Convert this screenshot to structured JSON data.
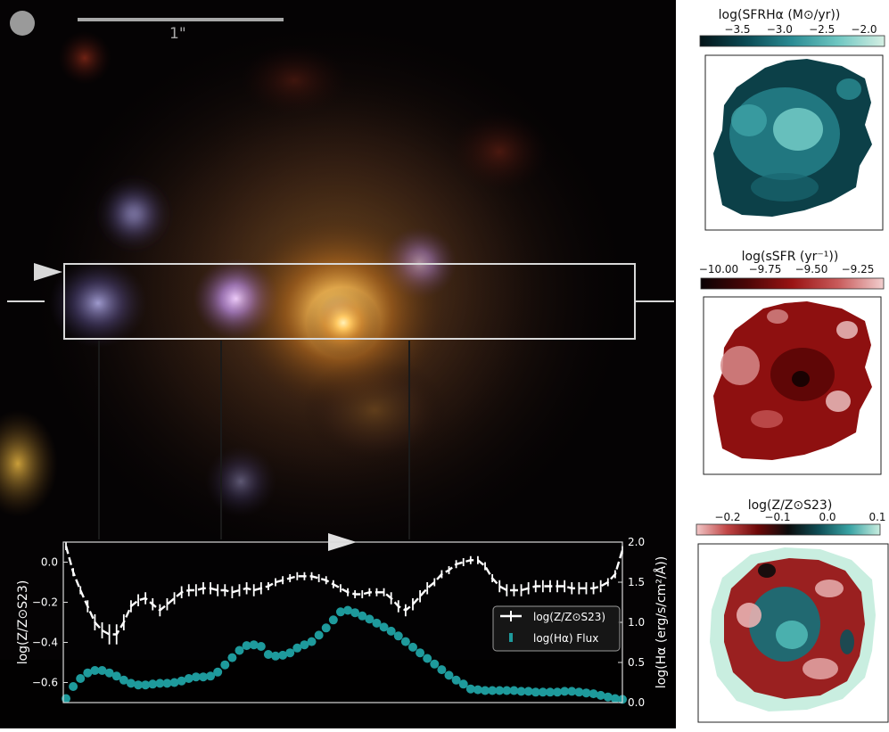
{
  "image": {
    "scale_bar_label": "1\""
  },
  "colors": {
    "metallicity_profile": "#ffffff",
    "halpha_flux": "#1e9a9c"
  },
  "chart_data": [
    {
      "type": "line",
      "title": "",
      "xlabel": "",
      "ylabel": "log(Z/Z⊙S23)",
      "y2label": "log(Hα (erg/s/cm²/Å))",
      "ylim": [
        -0.7,
        0.1
      ],
      "y2lim": [
        0.0,
        2.0
      ],
      "yticks": [
        "0.0",
        "−0.2",
        "−0.4",
        "−0.6"
      ],
      "y2ticks": [
        "2.0",
        "1.5",
        "1.0",
        "0.5",
        "0.0"
      ],
      "legend": {
        "placement": "lower-right",
        "entries": [
          "log(Z/Z⊙S23)",
          "log(Hα) Flux"
        ]
      },
      "series": [
        {
          "name": "log(Z/Z⊙S23)",
          "axis": "left",
          "style": "errorbar",
          "values": [
            0.08,
            -0.05,
            -0.14,
            -0.22,
            -0.3,
            -0.34,
            -0.36,
            -0.36,
            -0.3,
            -0.22,
            -0.19,
            -0.18,
            -0.21,
            -0.24,
            -0.21,
            -0.18,
            -0.15,
            -0.14,
            -0.14,
            -0.13,
            -0.13,
            -0.14,
            -0.14,
            -0.15,
            -0.14,
            -0.13,
            -0.14,
            -0.13,
            -0.12,
            -0.1,
            -0.09,
            -0.08,
            -0.07,
            -0.07,
            -0.07,
            -0.08,
            -0.09,
            -0.11,
            -0.13,
            -0.15,
            -0.16,
            -0.16,
            -0.15,
            -0.15,
            -0.15,
            -0.18,
            -0.22,
            -0.24,
            -0.21,
            -0.17,
            -0.13,
            -0.1,
            -0.06,
            -0.04,
            -0.01,
            0.0,
            0.01,
            0.01,
            -0.02,
            -0.08,
            -0.12,
            -0.14,
            -0.14,
            -0.14,
            -0.13,
            -0.12,
            -0.12,
            -0.12,
            -0.12,
            -0.12,
            -0.13,
            -0.13,
            -0.13,
            -0.13,
            -0.12,
            -0.1,
            -0.06,
            0.06
          ],
          "errors": [
            0.02,
            0.02,
            0.02,
            0.03,
            0.04,
            0.04,
            0.05,
            0.05,
            0.04,
            0.03,
            0.03,
            0.03,
            0.03,
            0.03,
            0.03,
            0.03,
            0.03,
            0.03,
            0.03,
            0.03,
            0.03,
            0.03,
            0.03,
            0.03,
            0.03,
            0.03,
            0.03,
            0.03,
            0.02,
            0.02,
            0.02,
            0.02,
            0.02,
            0.02,
            0.02,
            0.02,
            0.02,
            0.02,
            0.02,
            0.02,
            0.02,
            0.02,
            0.02,
            0.02,
            0.02,
            0.03,
            0.03,
            0.03,
            0.03,
            0.03,
            0.03,
            0.02,
            0.02,
            0.02,
            0.02,
            0.02,
            0.02,
            0.02,
            0.02,
            0.02,
            0.03,
            0.03,
            0.03,
            0.03,
            0.03,
            0.03,
            0.03,
            0.03,
            0.03,
            0.03,
            0.03,
            0.03,
            0.03,
            0.03,
            0.03,
            0.02,
            0.02,
            0.02
          ]
        },
        {
          "name": "log(Hα) Flux",
          "axis": "right",
          "style": "scatter",
          "values": [
            0.05,
            0.2,
            0.3,
            0.37,
            0.4,
            0.4,
            0.37,
            0.33,
            0.28,
            0.24,
            0.22,
            0.22,
            0.23,
            0.24,
            0.24,
            0.25,
            0.27,
            0.3,
            0.32,
            0.32,
            0.33,
            0.38,
            0.47,
            0.56,
            0.65,
            0.71,
            0.72,
            0.7,
            0.6,
            0.58,
            0.59,
            0.62,
            0.68,
            0.72,
            0.76,
            0.84,
            0.93,
            1.03,
            1.13,
            1.15,
            1.12,
            1.08,
            1.04,
            0.99,
            0.94,
            0.89,
            0.83,
            0.76,
            0.69,
            0.62,
            0.55,
            0.48,
            0.41,
            0.34,
            0.28,
            0.23,
            0.17,
            0.16,
            0.15,
            0.15,
            0.15,
            0.15,
            0.15,
            0.14,
            0.14,
            0.13,
            0.13,
            0.13,
            0.13,
            0.14,
            0.14,
            0.13,
            0.12,
            0.11,
            0.09,
            0.07,
            0.05,
            0.04
          ]
        }
      ]
    },
    {
      "type": "heatmap",
      "title": "log(SFRHα (M⊙/yr))",
      "colorbar": {
        "ticks": [
          "−3.5",
          "−3.0",
          "−2.5",
          "−2.0"
        ],
        "colors": [
          "#041418",
          "#0b4a54",
          "#2b8c94",
          "#6fc7c2",
          "#d6f0e4"
        ]
      }
    },
    {
      "type": "heatmap",
      "title": "log(sSFR (yr⁻¹))",
      "colorbar": {
        "ticks": [
          "−10.00",
          "−9.75",
          "−9.50",
          "−9.25"
        ],
        "colors": [
          "#0a0204",
          "#4a0606",
          "#9a1414",
          "#c85a5a",
          "#f2cfcf"
        ]
      }
    },
    {
      "type": "heatmap",
      "title": "log(Z/Z⊙S23)",
      "colorbar": {
        "ticks": [
          "−0.2",
          "−0.1",
          "0.0",
          "0.1"
        ],
        "colors": [
          "#f1c6c6",
          "#c14646",
          "#6d0808",
          "#0b0b0b",
          "#0f4e56",
          "#39a3a4",
          "#c9eee0"
        ]
      }
    }
  ]
}
